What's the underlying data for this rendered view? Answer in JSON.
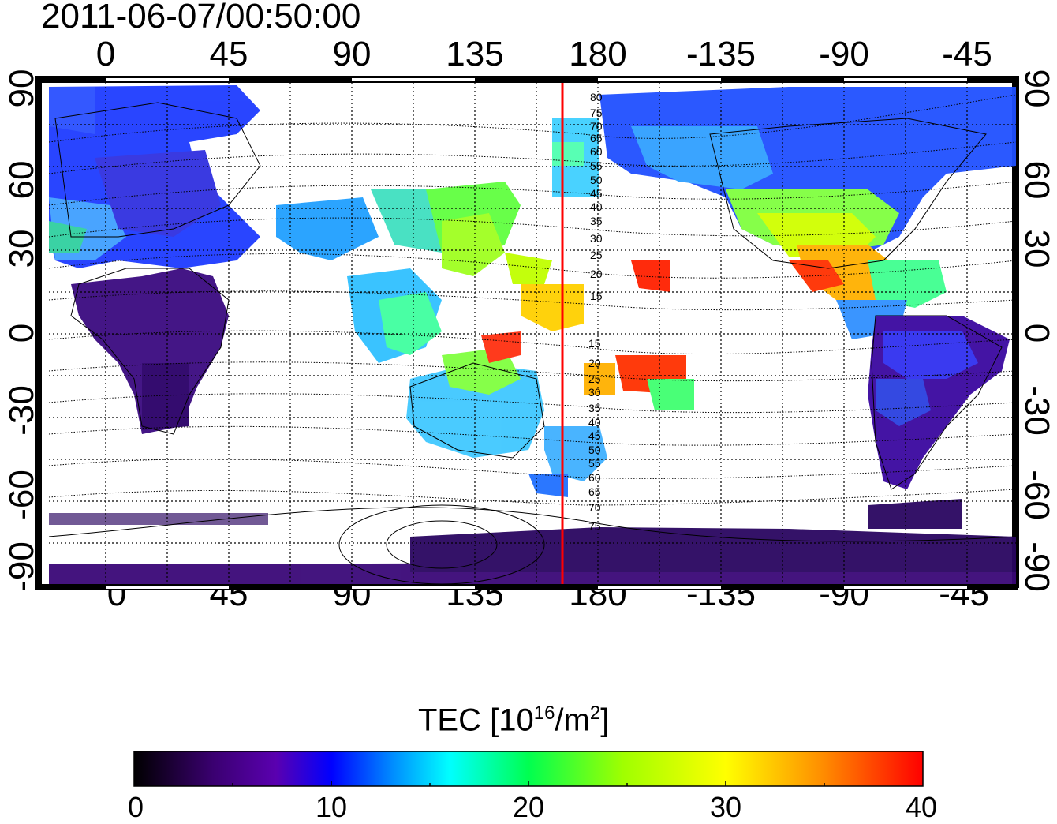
{
  "title": "2011-06-07/00:50:00",
  "map": {
    "lon_ticks_top": [
      "0",
      "45",
      "90",
      "135",
      "180",
      "-135",
      "-90",
      "-45"
    ],
    "lon_ticks_bottom": [
      "0",
      "45",
      "90",
      "135",
      "180",
      "-135",
      "-90",
      "-45"
    ],
    "lat_ticks_left": [
      "90",
      "60",
      "30",
      "0",
      "-30",
      "-60",
      "-90"
    ],
    "lat_ticks_right": [
      "90",
      "60",
      "30",
      "0",
      "-30",
      "-60",
      "-90"
    ],
    "meridian_line_color": "#ff0000",
    "contour_labels": [
      "80",
      "75",
      "70",
      "65",
      "60",
      "55",
      "50",
      "45",
      "40",
      "35",
      "30",
      "25",
      "20",
      "15",
      "15",
      "20",
      "25",
      "30",
      "35",
      "40",
      "45",
      "50",
      "55",
      "60",
      "65",
      "70",
      "75"
    ]
  },
  "colorbar": {
    "title_prefix": "TEC  [10",
    "title_sup1": "16",
    "title_mid": "/m",
    "title_sup2": "2",
    "title_suffix": "]",
    "ticks": [
      "0",
      "10",
      "20",
      "30",
      "40"
    ],
    "stops": [
      "#000000",
      "#3a0070",
      "#5a00b0",
      "#0000ff",
      "#0090ff",
      "#00ffff",
      "#00ff50",
      "#a0ff00",
      "#ffff00",
      "#ff9000",
      "#ff0000"
    ]
  }
}
